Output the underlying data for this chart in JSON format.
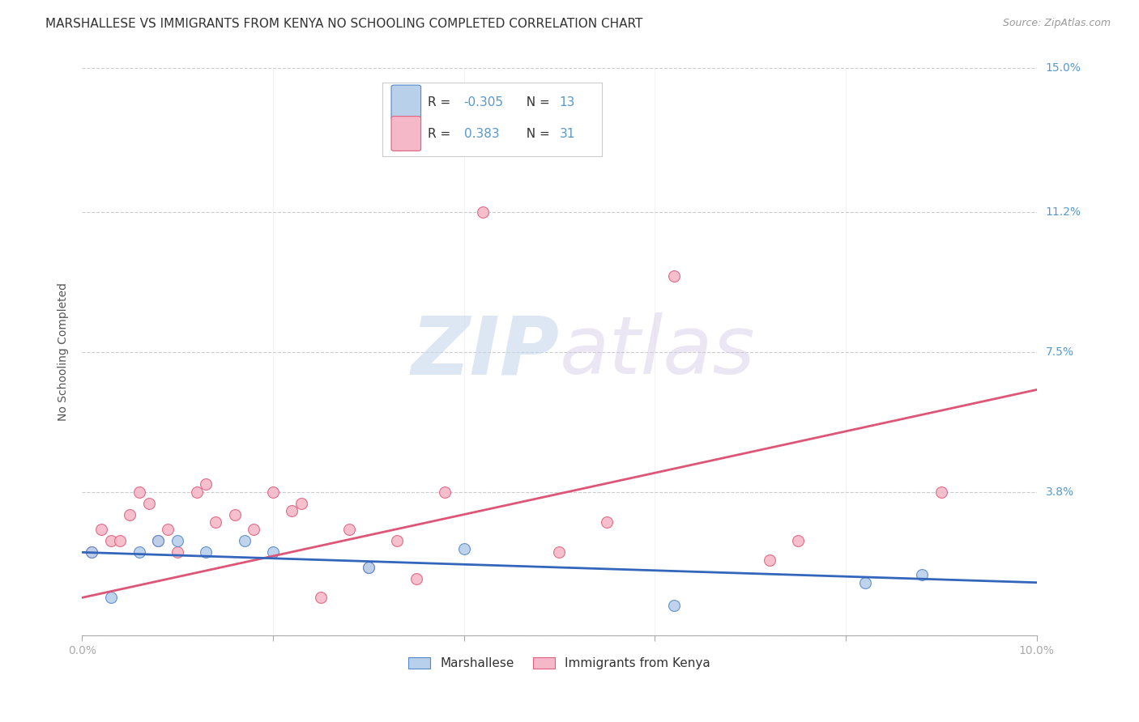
{
  "title": "MARSHALLESE VS IMMIGRANTS FROM KENYA NO SCHOOLING COMPLETED CORRELATION CHART",
  "source": "Source: ZipAtlas.com",
  "ylabel": "No Schooling Completed",
  "xlim": [
    0.0,
    0.1
  ],
  "ylim": [
    0.0,
    0.15
  ],
  "xticks": [
    0.0,
    0.02,
    0.04,
    0.06,
    0.08,
    0.1
  ],
  "yticks": [
    0.0,
    0.038,
    0.075,
    0.112,
    0.15
  ],
  "ytick_labels": [
    "",
    "3.8%",
    "7.5%",
    "11.2%",
    "15.0%"
  ],
  "xtick_labels": [
    "0.0%",
    "",
    "",
    "",
    "",
    "10.0%"
  ],
  "background_color": "#ffffff",
  "grid_color": "#cccccc",
  "watermark_zip": "ZIP",
  "watermark_atlas": "atlas",
  "series": [
    {
      "name": "Marshallese",
      "color": "#b8d0ea",
      "edge_color": "#5588cc",
      "line_color": "#3366bb",
      "R": -0.305,
      "N": 13,
      "x": [
        0.001,
        0.003,
        0.006,
        0.008,
        0.01,
        0.013,
        0.017,
        0.02,
        0.03,
        0.04,
        0.062,
        0.082,
        0.088
      ],
      "y": [
        0.022,
        0.01,
        0.022,
        0.025,
        0.025,
        0.022,
        0.025,
        0.022,
        0.018,
        0.023,
        0.008,
        0.014,
        0.016
      ],
      "trend_x": [
        0.0,
        0.1
      ],
      "trend_y": [
        0.022,
        0.014
      ]
    },
    {
      "name": "Immigrants from Kenya",
      "color": "#f5b8c8",
      "edge_color": "#e06080",
      "line_color": "#dd5577",
      "R": 0.383,
      "N": 31,
      "x": [
        0.001,
        0.002,
        0.003,
        0.004,
        0.005,
        0.006,
        0.007,
        0.008,
        0.009,
        0.01,
        0.012,
        0.013,
        0.014,
        0.016,
        0.018,
        0.02,
        0.022,
        0.023,
        0.025,
        0.028,
        0.03,
        0.033,
        0.035,
        0.038,
        0.042,
        0.05,
        0.055,
        0.062,
        0.072,
        0.075,
        0.09
      ],
      "y": [
        0.022,
        0.028,
        0.025,
        0.025,
        0.032,
        0.038,
        0.035,
        0.025,
        0.028,
        0.022,
        0.038,
        0.04,
        0.03,
        0.032,
        0.028,
        0.038,
        0.033,
        0.035,
        0.01,
        0.028,
        0.018,
        0.025,
        0.015,
        0.038,
        0.112,
        0.022,
        0.03,
        0.095,
        0.02,
        0.025,
        0.038
      ],
      "trend_x": [
        0.0,
        0.1
      ],
      "trend_y": [
        0.01,
        0.065
      ]
    }
  ],
  "title_fontsize": 11,
  "axis_label_fontsize": 10,
  "tick_fontsize": 10,
  "marker_size": 100,
  "line_width": 2.0
}
